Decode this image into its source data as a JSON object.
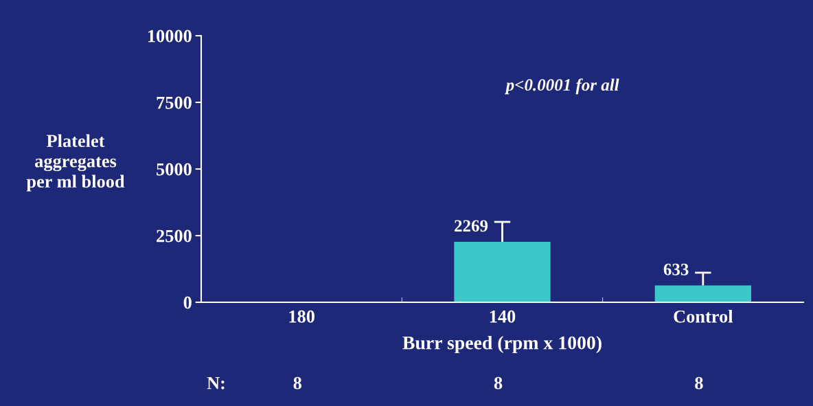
{
  "chart_data": {
    "type": "bar",
    "ylabel": "Platelet\naggregates\nper ml blood",
    "xlabel": "Burr speed (rpm x 1000)",
    "categories": [
      "180",
      "140",
      "Control"
    ],
    "values": [
      null,
      2269,
      633
    ],
    "value_labels": [
      null,
      "2269",
      "633"
    ],
    "errors": [
      null,
      [
        2269,
        3015
      ],
      [
        633,
        1110
      ]
    ],
    "color": "#3cc8c8",
    "ylim": [
      0,
      10000
    ],
    "yticks": [
      0,
      2500,
      5000,
      7500,
      10000
    ],
    "annotations": [
      "p<0.0001 for all",
      "N:",
      "8",
      "8",
      "8"
    ],
    "grid": false,
    "legend": false
  }
}
